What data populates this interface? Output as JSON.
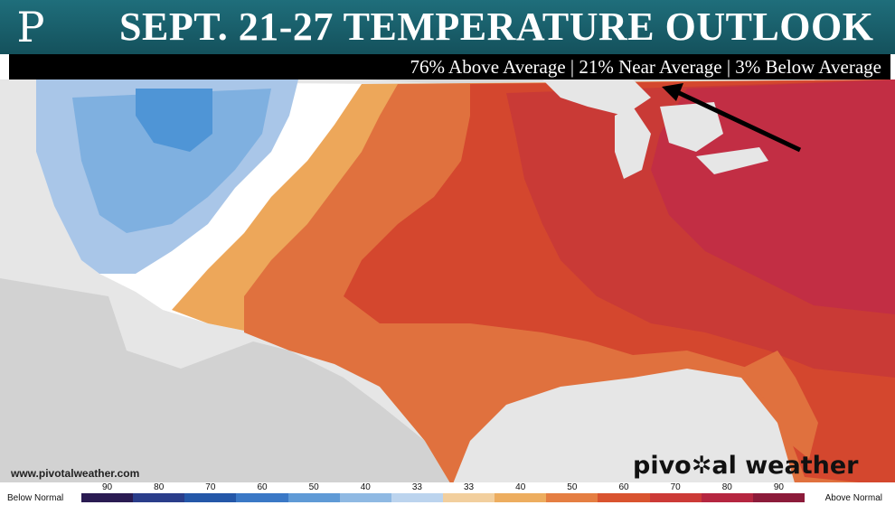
{
  "header": {
    "logo_letter": "P",
    "title": "SEPT. 21-27 TEMPERATURE OUTLOOK",
    "subtitle": "76% Above Average | 21% Near Average | 3% Below Average"
  },
  "map": {
    "type": "US temperature probability outlook",
    "colors": {
      "below_outer": "#a9c6e8",
      "below_mid": "#7fb0e0",
      "below_inner": "#4f95d6",
      "near": "#ffffff",
      "above_40": "#eda75a",
      "above_50": "#e0713e",
      "above_60": "#d4472e",
      "above_70": "#c93a36",
      "above_80": "#c22e44",
      "land_outside": "#d5d5d5",
      "water": "#e8e8e8"
    },
    "annotation": "arrow pointing from the Mid-Atlantic toward the Great Lakes"
  },
  "watermark": {
    "url": "www.pivotalweather.com",
    "brand_pre": "pivo",
    "brand_post": "al weather",
    "brand_gear": "✲"
  },
  "legend": {
    "left_label": "Below Normal",
    "right_label": "Above Normal",
    "ticks": [
      "90",
      "80",
      "70",
      "60",
      "50",
      "40",
      "33",
      "33",
      "40",
      "50",
      "60",
      "70",
      "80",
      "90"
    ],
    "colors": [
      "#2a1b52",
      "#2a3d8a",
      "#2457a8",
      "#3a78c6",
      "#5f9ad6",
      "#8fb9e3",
      "#bcd4ee",
      "#f2cf9e",
      "#edad5f",
      "#e57e42",
      "#d9532f",
      "#cc3a37",
      "#b52640",
      "#8c1b3a"
    ]
  }
}
